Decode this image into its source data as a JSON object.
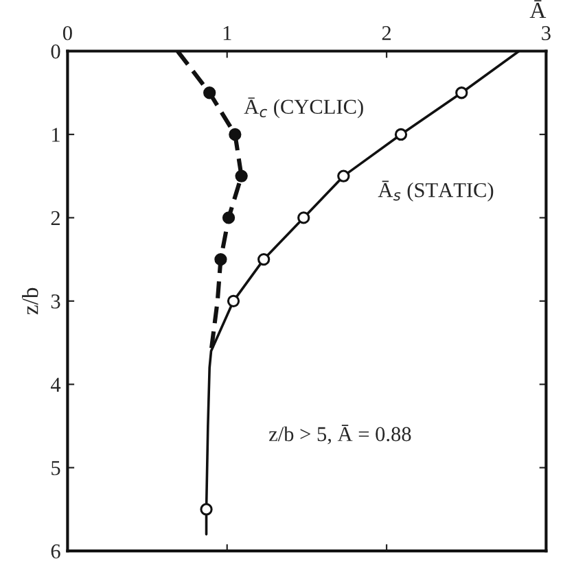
{
  "chart_data": {
    "type": "line",
    "xlabel": "Ā",
    "ylabel": "z/b",
    "xlim": [
      0,
      3
    ],
    "xticks": [
      0,
      1,
      2,
      3
    ],
    "ylim": [
      6,
      0
    ],
    "yticks": [
      0,
      1,
      2,
      3,
      4,
      5,
      6
    ],
    "grid": false,
    "legend": false,
    "series": [
      {
        "name": "Ā$_{s}$ (STATIC)",
        "color": "#111111",
        "line_style": "solid",
        "marker": "none",
        "x": [
          2.83,
          2.47,
          2.09,
          1.73,
          1.48,
          1.23,
          1.04,
          0.9,
          0.89,
          0.88,
          0.87,
          0.87
        ],
        "values": [
          0,
          0.5,
          1,
          1.5,
          2,
          2.5,
          3,
          3.6,
          3.8,
          4.5,
          5.5,
          5.8
        ]
      },
      {
        "name": "Ā$_{c}$ (CYCLIC)",
        "color": "#111111",
        "line_style": "dashed",
        "marker": "none",
        "x": [
          0.69,
          0.89,
          1.05,
          1.09,
          1.01,
          0.96,
          0.94,
          0.9
        ],
        "values": [
          0,
          0.5,
          1,
          1.5,
          2,
          2.5,
          3,
          3.6
        ]
      },
      {
        "type": "scatter",
        "color": "#ffffff",
        "marker": "circle",
        "x": [
          2.47,
          2.09,
          1.73,
          1.48,
          1.23,
          1.04,
          0.87
        ],
        "values": [
          0.5,
          1,
          1.5,
          2,
          2.5,
          3,
          5.5
        ]
      },
      {
        "type": "scatter",
        "color": "#111111",
        "marker": "circle",
        "x": [
          0.89,
          1.05,
          1.09,
          1.01,
          0.96
        ],
        "values": [
          0.5,
          1,
          1.5,
          2,
          2.5
        ]
      }
    ],
    "annotations": [
      "z/b > 5, Ā = 0.88"
    ]
  }
}
